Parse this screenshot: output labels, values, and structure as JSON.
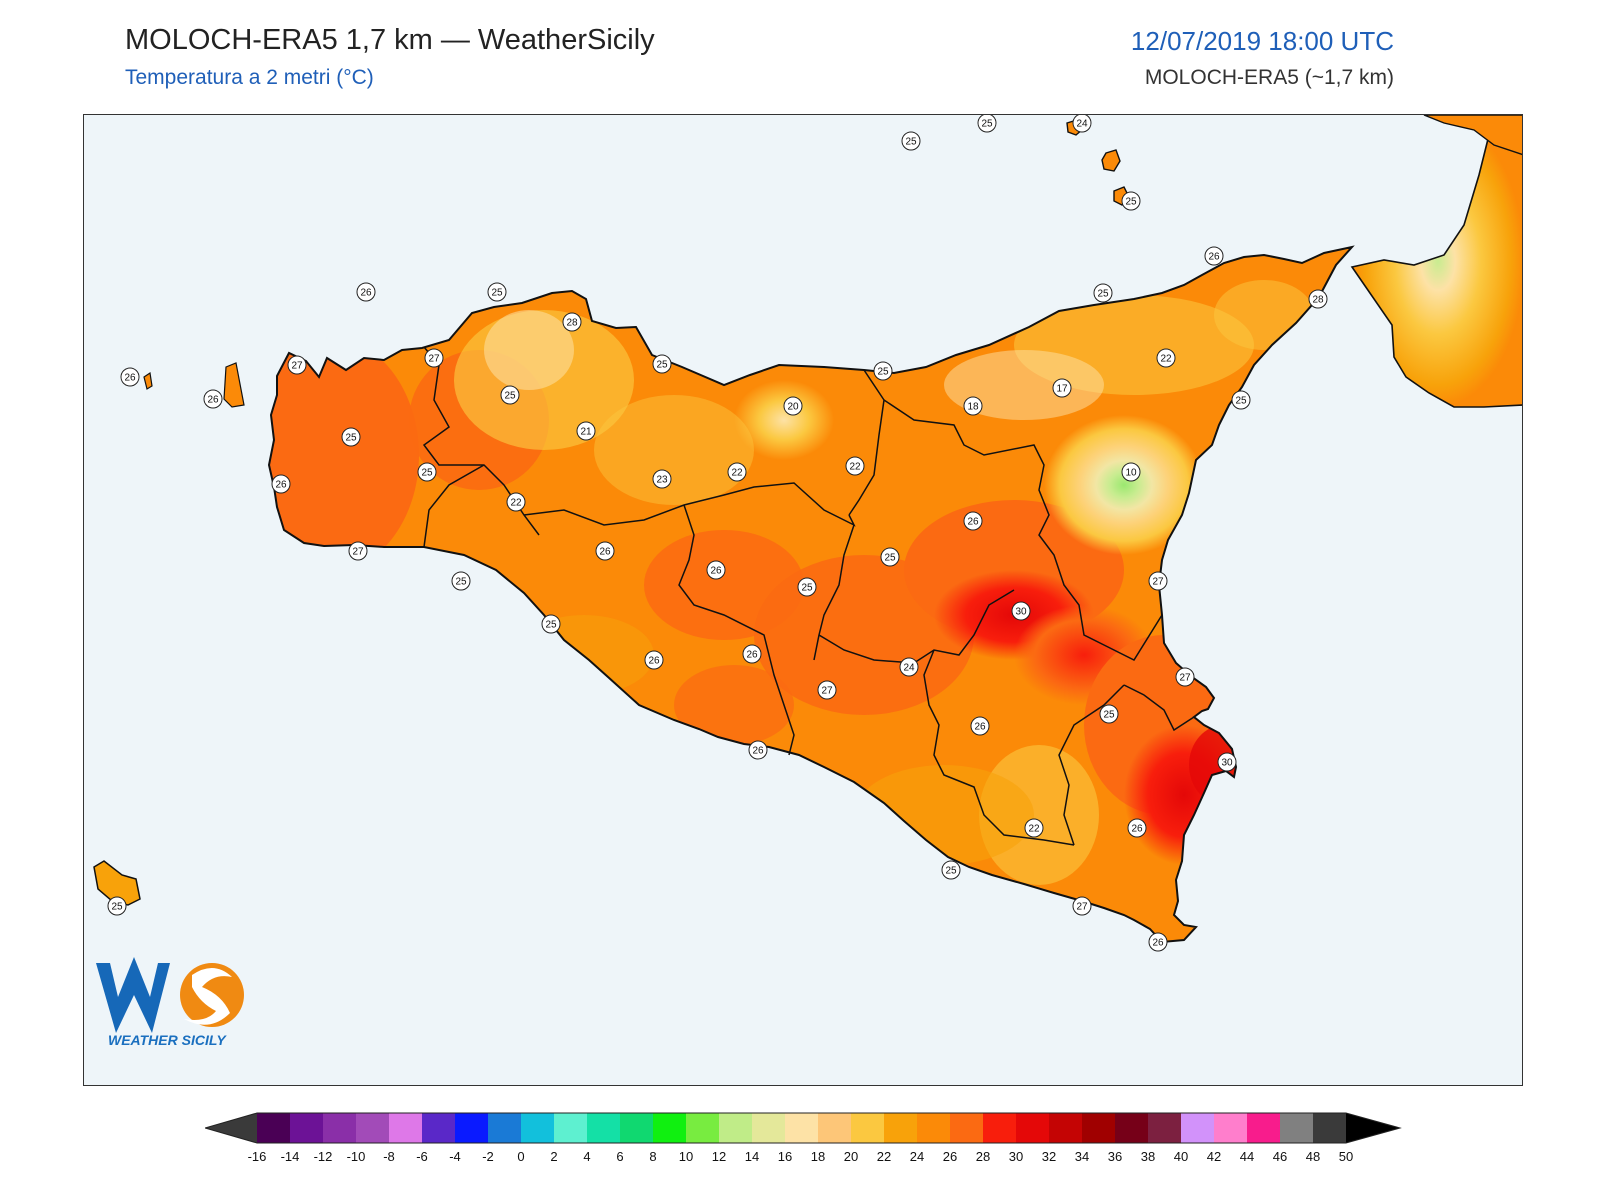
{
  "header": {
    "title": "MOLOCH-ERA5 1,7 km — WeatherSicily",
    "subtitle": "Temperatura a 2 metri (°C)",
    "datetime": "12/07/2019 18:00 UTC",
    "model": "MOLOCH-ERA5 (~1,7 km)"
  },
  "logo": {
    "letters": "WS",
    "name": "WEATHER SICILY"
  },
  "map": {
    "region": "Sicily",
    "sea_color": "#eef5f9",
    "station_labels": [
      {
        "value": "25",
        "name": "st-alicudi"
      },
      {
        "value": "25",
        "name": "st-filicudi"
      },
      {
        "value": "24",
        "name": "st-stromboli"
      },
      {
        "value": "25",
        "name": "st-lipari"
      },
      {
        "value": "26",
        "name": "st-sanvito"
      },
      {
        "value": "25",
        "name": "st-palermo-w"
      },
      {
        "value": "28",
        "name": "st-palermo"
      },
      {
        "value": "26",
        "name": "st-marettimo"
      },
      {
        "value": "26",
        "name": "st-favignana"
      },
      {
        "value": "27",
        "name": "st-trapani"
      },
      {
        "value": "27",
        "name": "st-alcamo"
      },
      {
        "value": "25",
        "name": "st-cefalu"
      },
      {
        "value": "25",
        "name": "st-sanstefano"
      },
      {
        "value": "25",
        "name": "st-capodorlando"
      },
      {
        "value": "26",
        "name": "st-milazzo"
      },
      {
        "value": "28",
        "name": "st-messina"
      },
      {
        "value": "22",
        "name": "st-peloritani"
      },
      {
        "value": "17",
        "name": "st-nebrodi-e"
      },
      {
        "value": "18",
        "name": "st-nebrodi"
      },
      {
        "value": "20",
        "name": "st-madonie"
      },
      {
        "value": "25",
        "name": "st-taormina"
      },
      {
        "value": "10",
        "name": "st-etna"
      },
      {
        "value": "25",
        "name": "st-bagheria"
      },
      {
        "value": "21",
        "name": "st-corleone"
      },
      {
        "value": "25",
        "name": "st-salemi"
      },
      {
        "value": "25",
        "name": "st-marsala-n"
      },
      {
        "value": "26",
        "name": "st-marsala"
      },
      {
        "value": "22",
        "name": "st-prizzi"
      },
      {
        "value": "23",
        "name": "st-lercara"
      },
      {
        "value": "22",
        "name": "st-cammarata"
      },
      {
        "value": "22",
        "name": "st-petralia"
      },
      {
        "value": "26",
        "name": "st-adrano"
      },
      {
        "value": "25",
        "name": "st-enna"
      },
      {
        "value": "27",
        "name": "st-mazara"
      },
      {
        "value": "27",
        "name": "st-catania"
      },
      {
        "value": "26",
        "name": "st-sciacca-n"
      },
      {
        "value": "26",
        "name": "st-caltanissetta"
      },
      {
        "value": "25",
        "name": "st-mussomeli"
      },
      {
        "value": "30",
        "name": "st-paterno"
      },
      {
        "value": "25",
        "name": "st-sciacca"
      },
      {
        "value": "25",
        "name": "st-ribera"
      },
      {
        "value": "26",
        "name": "st-canicatti"
      },
      {
        "value": "26",
        "name": "st-piazza"
      },
      {
        "value": "27",
        "name": "st-augusta"
      },
      {
        "value": "27",
        "name": "st-riesi"
      },
      {
        "value": "24",
        "name": "st-caltagirone"
      },
      {
        "value": "26",
        "name": "st-lentini"
      },
      {
        "value": "25",
        "name": "st-agrigento"
      },
      {
        "value": "26",
        "name": "st-licata"
      },
      {
        "value": "30",
        "name": "st-siracusa"
      },
      {
        "value": "22",
        "name": "st-ragusa-n"
      },
      {
        "value": "26",
        "name": "st-noto"
      },
      {
        "value": "25",
        "name": "st-scoglitti"
      },
      {
        "value": "27",
        "name": "st-pozzallo"
      },
      {
        "value": "26",
        "name": "st-pachino"
      },
      {
        "value": "25",
        "name": "st-pantelleria"
      }
    ]
  },
  "colorbar": {
    "ticks": [
      "-16",
      "-14",
      "-12",
      "-10",
      "-8",
      "-6",
      "-4",
      "-2",
      "0",
      "2",
      "4",
      "6",
      "8",
      "10",
      "12",
      "14",
      "16",
      "18",
      "20",
      "22",
      "24",
      "26",
      "28",
      "30",
      "32",
      "34",
      "36",
      "38",
      "40",
      "42",
      "44",
      "46",
      "48",
      "50"
    ],
    "colors": [
      "#4a0055",
      "#6c1296",
      "#8a2fa8",
      "#a24bb8",
      "#de78e8",
      "#5a28c8",
      "#0a1aff",
      "#1a7ad6",
      "#12c0dc",
      "#5ef0d0",
      "#14e0a6",
      "#10d870",
      "#10f010",
      "#78ec40",
      "#c0ec88",
      "#e4e89a",
      "#fde2a6",
      "#fdc678",
      "#fbc840",
      "#f8a20a",
      "#fb8a08",
      "#fb6a12",
      "#f81e0c",
      "#e40808",
      "#c40404",
      "#a00000",
      "#760018",
      "#7c2040",
      "#d292fa",
      "#ff7ecc",
      "#f81c8c",
      "#808080",
      "#3a3a3a"
    ]
  }
}
